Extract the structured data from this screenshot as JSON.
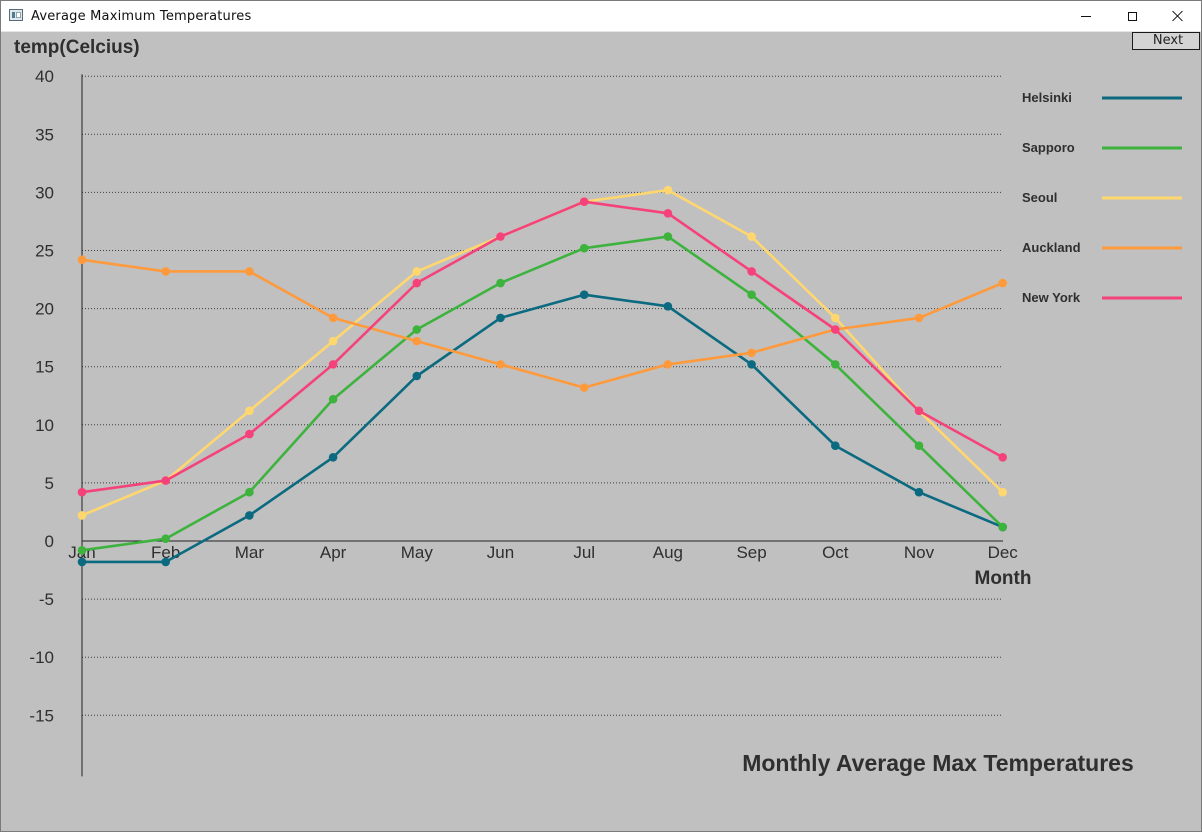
{
  "window": {
    "title": "Average Maximum Temperatures"
  },
  "toolbar": {
    "next_label": "Next"
  },
  "chart_data": {
    "type": "line",
    "title": "Monthly Average Max Temperatures",
    "xlabel": "Month",
    "ylabel": "temp(Celcius)",
    "categories": [
      "Jan",
      "Feb",
      "Mar",
      "Apr",
      "May",
      "Jun",
      "Jul",
      "Aug",
      "Sep",
      "Oct",
      "Nov",
      "Dec"
    ],
    "ylim": [
      -20,
      40
    ],
    "yticks": [
      40,
      35,
      30,
      25,
      20,
      15,
      10,
      5,
      0,
      -5,
      -10,
      -15
    ],
    "grid": true,
    "legend_position": "right",
    "series": [
      {
        "name": "Helsinki",
        "color": "#0b6a80",
        "values": [
          -1.8,
          -1.8,
          2.2,
          7.2,
          14.2,
          19.2,
          21.2,
          20.2,
          15.2,
          8.2,
          4.2,
          1.2
        ]
      },
      {
        "name": "Sapporo",
        "color": "#3db33e",
        "values": [
          -0.8,
          0.2,
          4.2,
          12.2,
          18.2,
          22.2,
          25.2,
          26.2,
          21.2,
          15.2,
          8.2,
          1.2
        ]
      },
      {
        "name": "Seoul",
        "color": "#ffd76e",
        "values": [
          2.2,
          5.2,
          11.2,
          17.2,
          23.2,
          26.2,
          29.2,
          30.2,
          26.2,
          19.2,
          11.2,
          4.2
        ]
      },
      {
        "name": "Auckland",
        "color": "#ff9a3c",
        "values": [
          24.2,
          23.2,
          23.2,
          19.2,
          17.2,
          15.2,
          13.2,
          15.2,
          16.2,
          18.2,
          19.2,
          22.2
        ]
      },
      {
        "name": "New York",
        "color": "#f5427a",
        "values": [
          4.2,
          5.2,
          9.2,
          15.2,
          22.2,
          26.2,
          29.2,
          28.2,
          23.2,
          18.2,
          11.2,
          7.2
        ]
      }
    ]
  }
}
